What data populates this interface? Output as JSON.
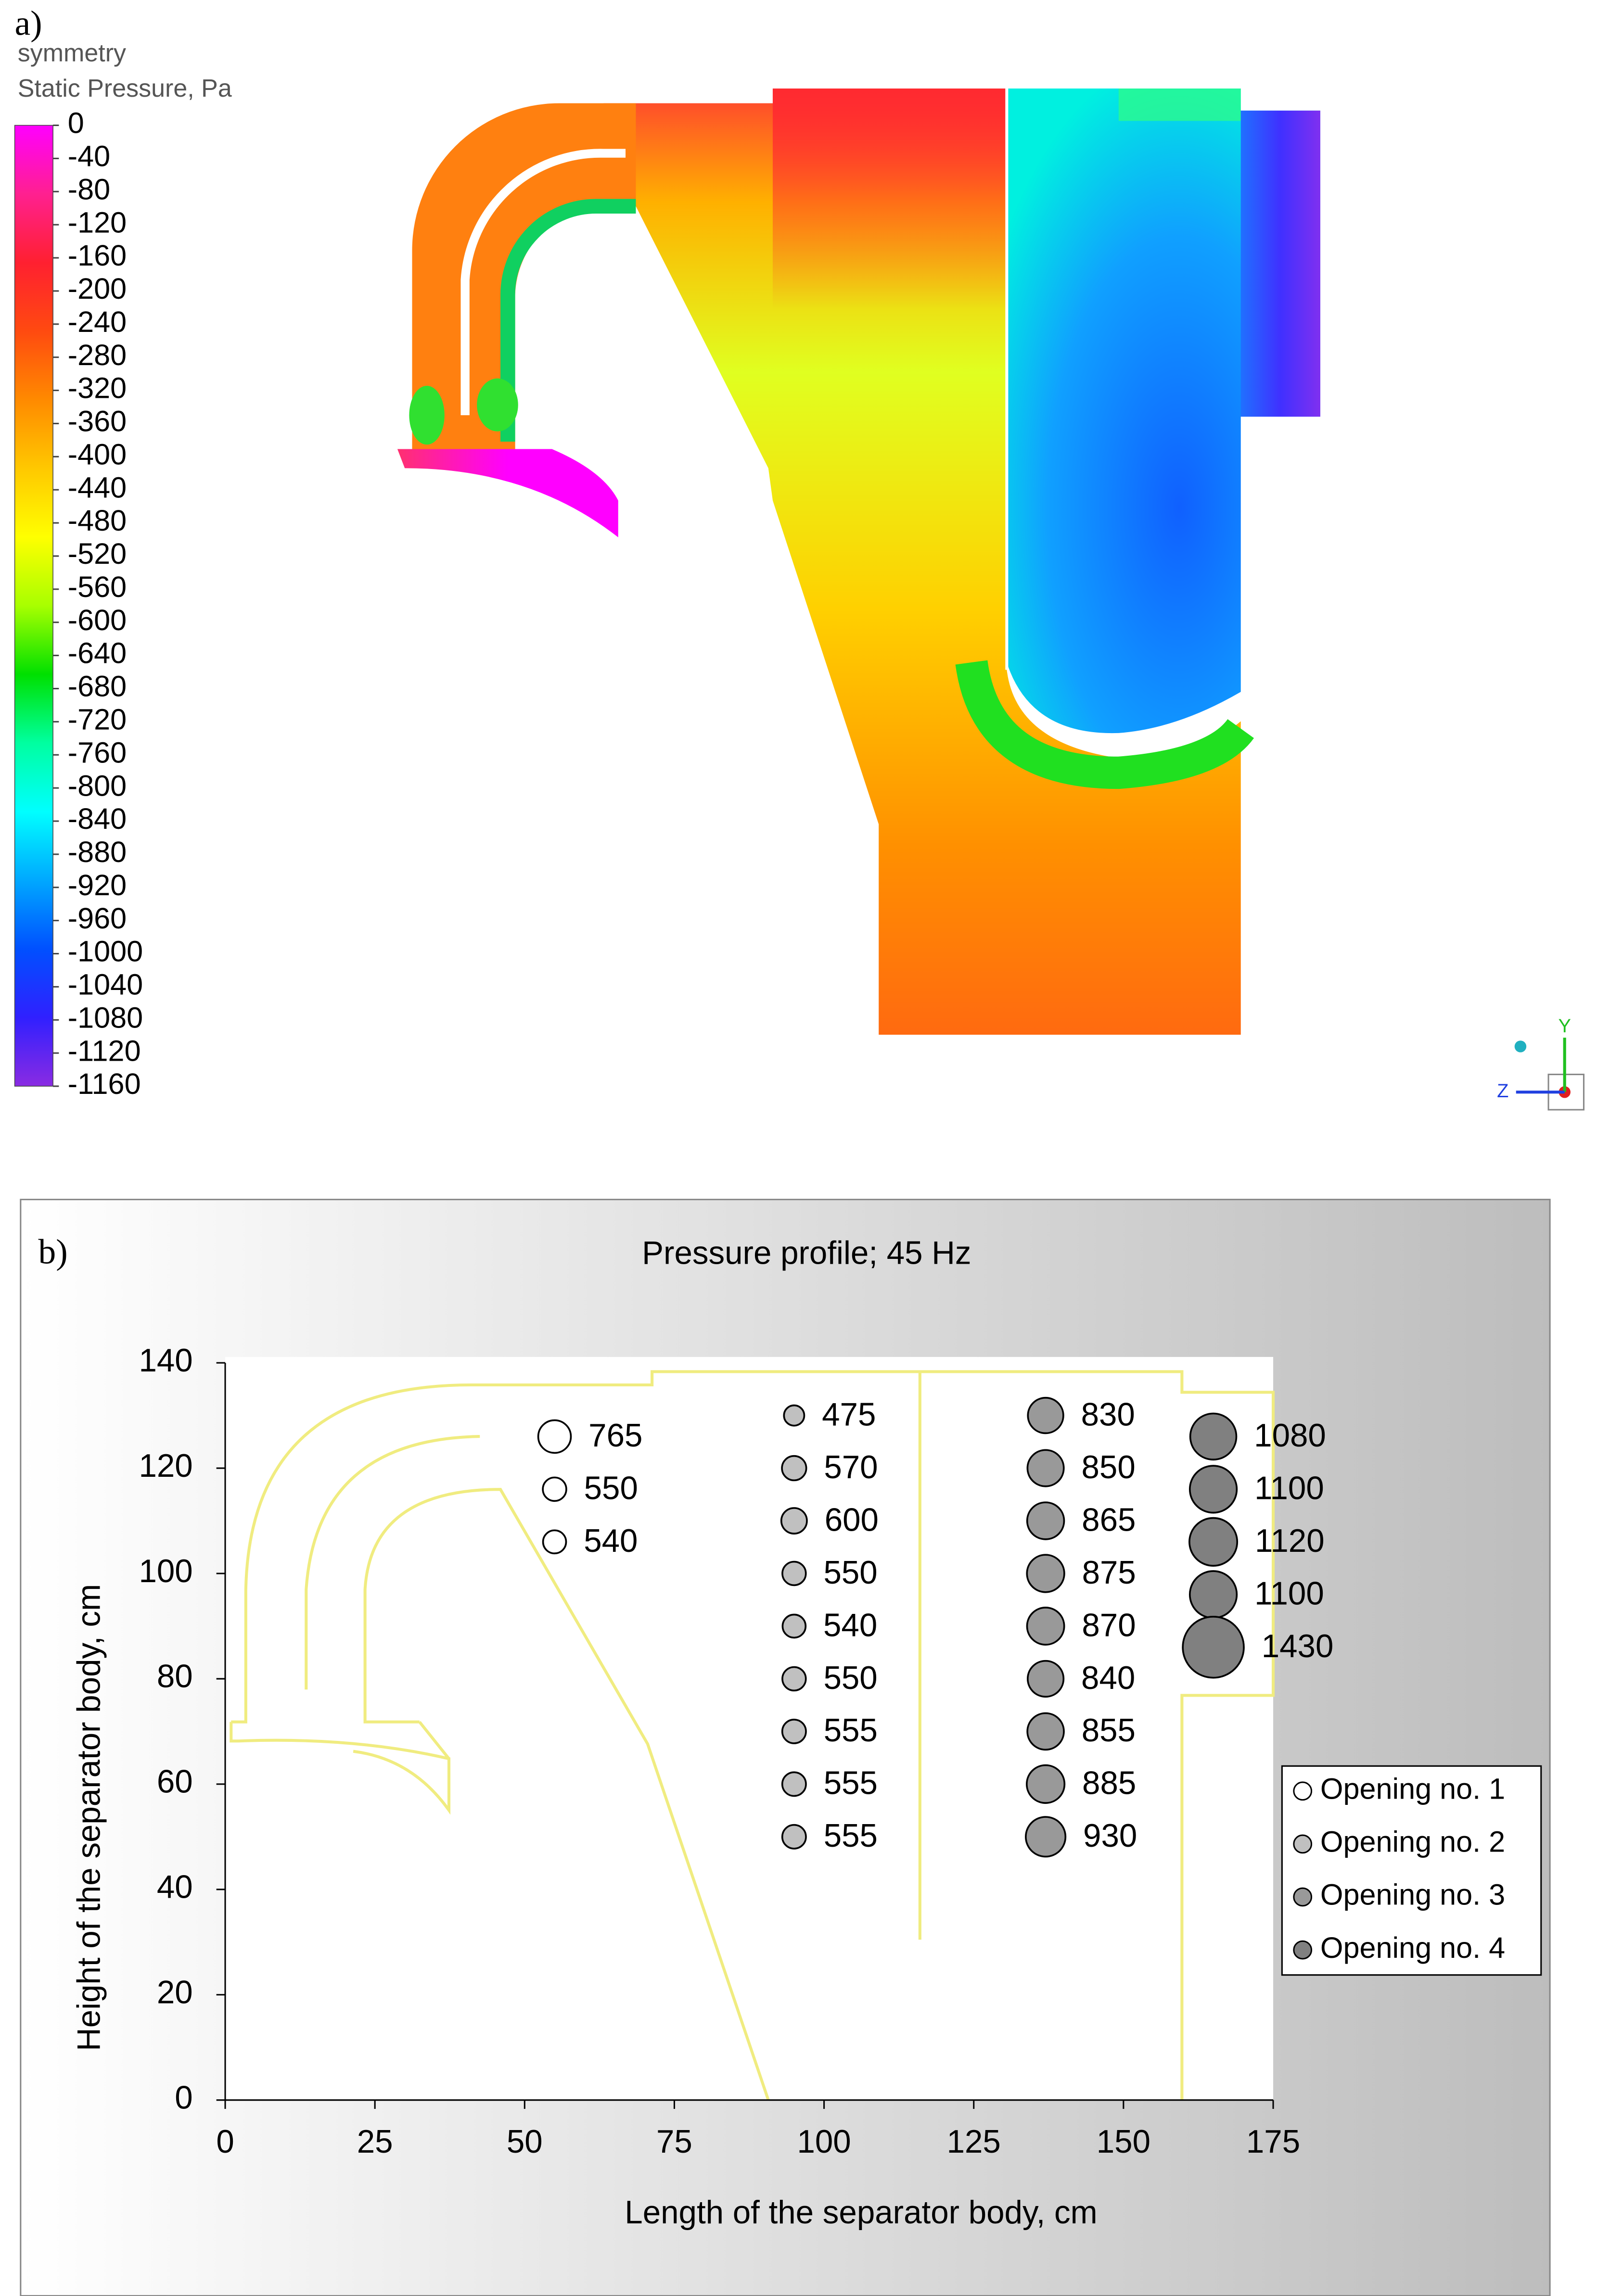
{
  "chart_data": [
    {
      "type": "contour",
      "label": "a)",
      "title": "symmetry",
      "subtitle": "Static Pressure, Pa",
      "clim": [
        0,
        -1160
      ],
      "cticks": [
        0,
        -40,
        -80,
        -120,
        -160,
        -200,
        -240,
        -280,
        -320,
        -360,
        -400,
        -440,
        -480,
        -520,
        -560,
        -600,
        -640,
        -680,
        -720,
        -760,
        -800,
        -840,
        -880,
        -920,
        -960,
        -1000,
        -1040,
        -1080,
        -1120,
        -1160
      ],
      "colormap": [
        "#ff00ff",
        "#ff2090",
        "#ff2030",
        "#ff4a10",
        "#ff8a00",
        "#ffc800",
        "#ffff00",
        "#a8ff00",
        "#00e000",
        "#00ffa0",
        "#00ffff",
        "#00a8ff",
        "#0050ff",
        "#3020ff",
        "#8a2be2"
      ],
      "triad": [
        "Y",
        "Z"
      ]
    },
    {
      "type": "bubble",
      "label": "b)",
      "title": "Pressure profile; 45 Hz",
      "xlabel": "Length of the separator body, cm",
      "ylabel": "Height of the separator body, cm",
      "xlim": [
        0,
        175
      ],
      "ylim": [
        0,
        140
      ],
      "xticks": [
        0,
        25,
        50,
        75,
        100,
        125,
        150,
        175
      ],
      "yticks": [
        0,
        20,
        40,
        60,
        80,
        100,
        120,
        140
      ],
      "legend": "right",
      "series": [
        {
          "name": "Opening no. 1",
          "color": "#ffffff",
          "x": [
            55,
            55,
            55
          ],
          "y": [
            126,
            116,
            106
          ],
          "size": [
            765,
            550,
            540
          ]
        },
        {
          "name": "Opening no. 2",
          "color": "#c0c0c0",
          "x": [
            95,
            95,
            95,
            95,
            95,
            95,
            95,
            95,
            95
          ],
          "y": [
            130,
            120,
            110,
            100,
            90,
            80,
            70,
            60,
            50
          ],
          "size": [
            475,
            570,
            600,
            550,
            540,
            550,
            555,
            555,
            555
          ]
        },
        {
          "name": "Opening no. 3",
          "color": "#999999",
          "x": [
            137,
            137,
            137,
            137,
            137,
            137,
            137,
            137,
            137
          ],
          "y": [
            130,
            120,
            110,
            100,
            90,
            80,
            70,
            60,
            50
          ],
          "size": [
            830,
            850,
            865,
            875,
            870,
            840,
            855,
            885,
            930
          ]
        },
        {
          "name": "Opening no. 4",
          "color": "#808080",
          "x": [
            165,
            165,
            165,
            165,
            165
          ],
          "y": [
            126,
            116,
            106,
            96,
            86
          ],
          "size": [
            1080,
            1100,
            1120,
            1100,
            1430
          ]
        }
      ]
    }
  ]
}
